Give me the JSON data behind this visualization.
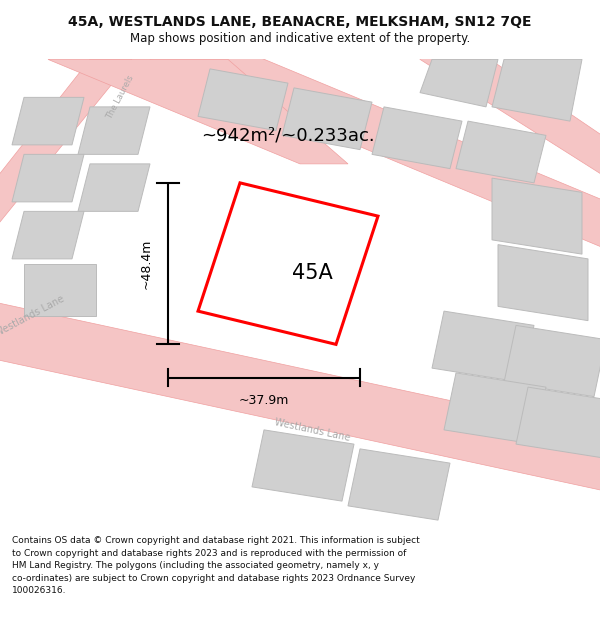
{
  "title_line1": "45A, WESTLANDS LANE, BEANACRE, MELKSHAM, SN12 7QE",
  "title_line2": "Map shows position and indicative extent of the property.",
  "area_label": "~942m²/~0.233ac.",
  "plot_label": "45A",
  "dim_height": "~48.4m",
  "dim_width": "~37.9m",
  "footer_lines": [
    "Contains OS data © Crown copyright and database right 2021. This information is subject",
    "to Crown copyright and database rights 2023 and is reproduced with the permission of",
    "HM Land Registry. The polygons (including the associated geometry, namely x, y",
    "co-ordinates) are subject to Crown copyright and database rights 2023 Ordnance Survey",
    "100026316."
  ],
  "background_color": "#ffffff",
  "plot_color": "#ff0000",
  "dim_color": "#111111",
  "title_color": "#111111",
  "footer_color": "#111111",
  "road_fill": "#f5c5c5",
  "road_edge": "#f0a0a0",
  "building_fill": "#d0d0d0",
  "building_edge": "#bbbbbb",
  "road_label_color": "#aaaaaa",
  "map_bg": "#f8f8f8"
}
